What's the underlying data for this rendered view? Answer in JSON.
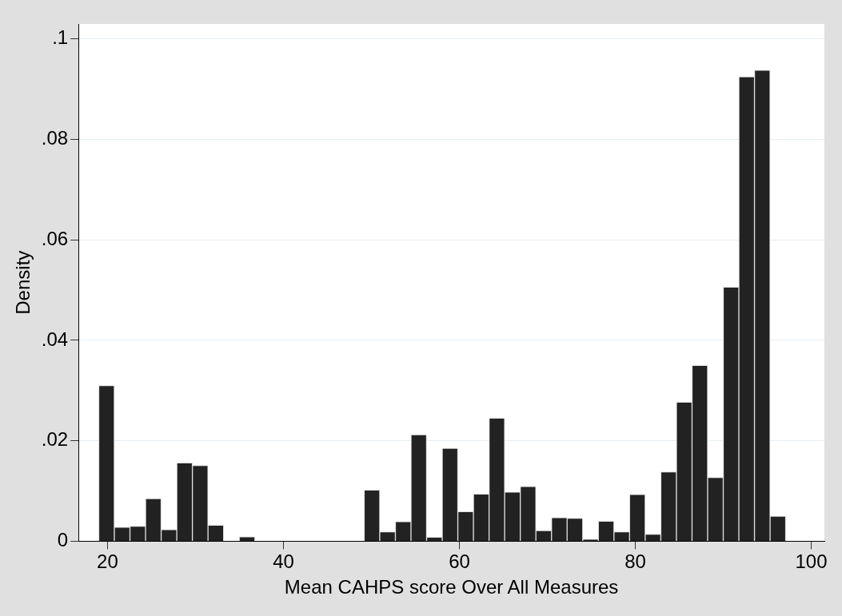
{
  "chart_data": {
    "type": "histogram",
    "xlabel": "Mean CAHPS score Over All Measures",
    "ylabel": "Density",
    "bins": [
      19,
      20.775,
      22.55,
      24.325,
      26.1,
      27.875,
      29.65,
      31.425,
      33.2,
      34.975,
      36.75,
      38.525,
      40.3,
      42.075,
      43.85,
      45.625,
      47.4,
      49.175,
      50.95,
      52.725,
      54.5,
      56.275,
      58.05,
      59.825,
      61.6,
      63.375,
      65.15,
      66.925,
      68.7,
      70.475,
      72.25,
      74.025,
      75.8,
      77.575,
      79.35,
      81.125,
      82.9,
      84.675,
      86.45,
      88.225,
      90,
      91.775,
      93.55,
      95.325,
      97.1
    ],
    "values": [
      0.031,
      0.0028,
      0.003,
      0.0085,
      0.0023,
      0.0156,
      0.0151,
      0.0032,
      0,
      0.0009,
      0,
      0,
      0,
      0,
      0,
      0,
      0,
      0.0102,
      0.0019,
      0.0039,
      0.0212,
      0.0008,
      0.0185,
      0.0059,
      0.0094,
      0.0245,
      0.0098,
      0.0109,
      0.0021,
      0.0047,
      0.0046,
      0.0004,
      0.004,
      0.0019,
      0.0093,
      0.0014,
      0.0138,
      0.0277,
      0.035,
      0.0127,
      0.0506,
      0.0925,
      0.0938,
      0.005
    ],
    "color": "#222222",
    "xlim": [
      16.7,
      101.5
    ],
    "xticks": [
      20,
      40,
      60,
      80,
      100
    ],
    "ylim": [
      0,
      0.103
    ],
    "yticks": [
      {
        "value": 0,
        "label": "0"
      },
      {
        "value": 0.02,
        "label": ".02"
      },
      {
        "value": 0.04,
        "label": ".04"
      },
      {
        "value": 0.06,
        "label": ".06"
      },
      {
        "value": 0.08,
        "label": ".08"
      },
      {
        "value": 0.1,
        "label": ".1"
      }
    ],
    "grid": "y"
  }
}
